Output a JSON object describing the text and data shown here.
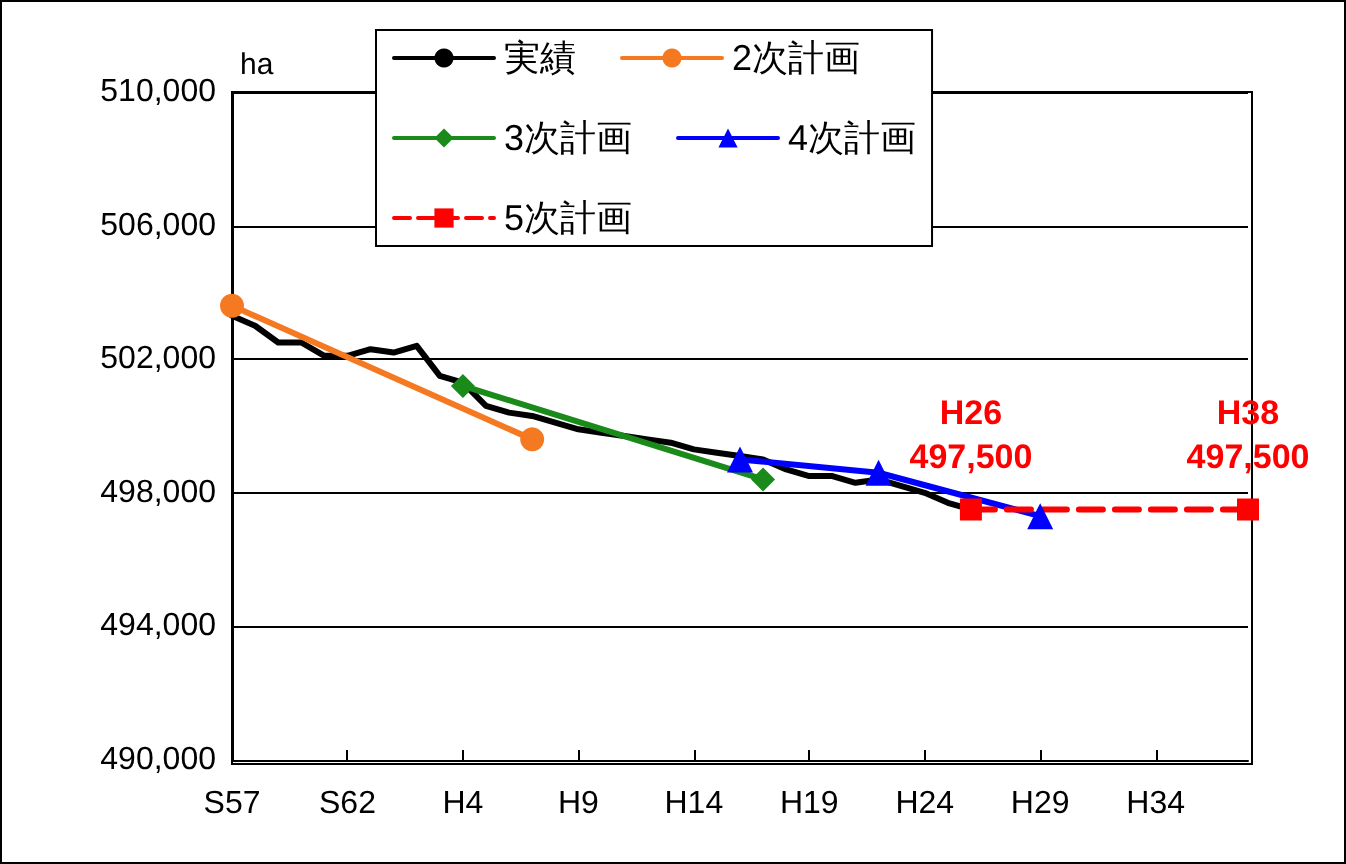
{
  "chart_data": {
    "type": "line",
    "ylabel": "ha",
    "categories": [
      "S57",
      null,
      null,
      null,
      null,
      "S62",
      null,
      null,
      null,
      null,
      "H4",
      null,
      null,
      null,
      null,
      "H9",
      null,
      null,
      null,
      null,
      "H14",
      null,
      null,
      null,
      null,
      "H19",
      null,
      null,
      null,
      null,
      "H24",
      null,
      null,
      null,
      null,
      "H29",
      null,
      null,
      null,
      null,
      "H34",
      null,
      null,
      null,
      null
    ],
    "ylim": [
      490000,
      510000
    ],
    "yticks": [
      {
        "value": 490000,
        "label": "490,000"
      },
      {
        "value": 494000,
        "label": "494,000"
      },
      {
        "value": 498000,
        "label": "498,000"
      },
      {
        "value": 502000,
        "label": "502,000"
      },
      {
        "value": 506000,
        "label": "506,000"
      },
      {
        "value": 510000,
        "label": "510,000"
      }
    ],
    "grid": "y",
    "legend": "top",
    "series": [
      {
        "name": "実績",
        "color": "#000000",
        "marker": "none",
        "line_style": "solid",
        "values": [
          503300,
          503000,
          502500,
          502500,
          502100,
          502100,
          502300,
          502200,
          502400,
          501500,
          501300,
          500600,
          500400,
          500300,
          500100,
          499900,
          499800,
          499700,
          499600,
          499500,
          499300,
          499200,
          499100,
          499000,
          498700,
          498500,
          498500,
          498300,
          498400,
          498200,
          498000,
          497700,
          497500,
          null,
          null,
          null,
          null,
          null,
          null,
          null,
          null,
          null,
          null,
          null,
          null
        ]
      },
      {
        "name": "2次計画",
        "color": "#f47920",
        "marker": "circle",
        "line_style": "solid",
        "values": [
          503600,
          null,
          null,
          null,
          null,
          null,
          null,
          null,
          null,
          null,
          null,
          null,
          null,
          499600,
          null,
          null,
          null,
          null,
          null,
          null,
          null,
          null,
          null,
          null,
          null,
          null,
          null,
          null,
          null,
          null,
          null,
          null,
          null,
          null,
          null,
          null,
          null,
          null,
          null,
          null,
          null,
          null,
          null,
          null,
          null
        ]
      },
      {
        "name": "3次計画",
        "color": "#1a8a1a",
        "marker": "diamond",
        "line_style": "solid",
        "values": [
          null,
          null,
          null,
          null,
          null,
          null,
          null,
          null,
          null,
          null,
          501200,
          null,
          null,
          null,
          null,
          null,
          null,
          null,
          null,
          null,
          null,
          null,
          null,
          498400,
          null,
          null,
          null,
          null,
          null,
          null,
          null,
          null,
          null,
          null,
          null,
          null,
          null,
          null,
          null,
          null,
          null,
          null,
          null,
          null,
          null
        ]
      },
      {
        "name": "4次計画",
        "color": "#0000ff",
        "marker": "triangle",
        "line_style": "solid",
        "values": [
          null,
          null,
          null,
          null,
          null,
          null,
          null,
          null,
          null,
          null,
          null,
          null,
          null,
          null,
          null,
          null,
          null,
          null,
          null,
          null,
          null,
          null,
          499000,
          null,
          null,
          null,
          null,
          null,
          498600,
          null,
          null,
          null,
          null,
          null,
          null,
          497300,
          null,
          null,
          null,
          null,
          null,
          null,
          null,
          null,
          null
        ]
      },
      {
        "name": "5次計画",
        "color": "#ff0000",
        "marker": "square",
        "line_style": "dashed",
        "values": [
          null,
          null,
          null,
          null,
          null,
          null,
          null,
          null,
          null,
          null,
          null,
          null,
          null,
          null,
          null,
          null,
          null,
          null,
          null,
          null,
          null,
          null,
          null,
          null,
          null,
          null,
          null,
          null,
          null,
          null,
          null,
          null,
          497500,
          null,
          null,
          null,
          null,
          null,
          null,
          null,
          null,
          null,
          null,
          null,
          497500
        ],
        "value_labels": [
          null,
          null,
          null,
          null,
          null,
          null,
          null,
          null,
          null,
          null,
          null,
          null,
          null,
          null,
          null,
          null,
          null,
          null,
          null,
          null,
          null,
          null,
          null,
          null,
          null,
          null,
          null,
          null,
          null,
          null,
          null,
          null,
          "H26\n497,500",
          null,
          null,
          null,
          null,
          null,
          null,
          null,
          null,
          null,
          null,
          null,
          "H38\n497,500"
        ]
      }
    ]
  }
}
